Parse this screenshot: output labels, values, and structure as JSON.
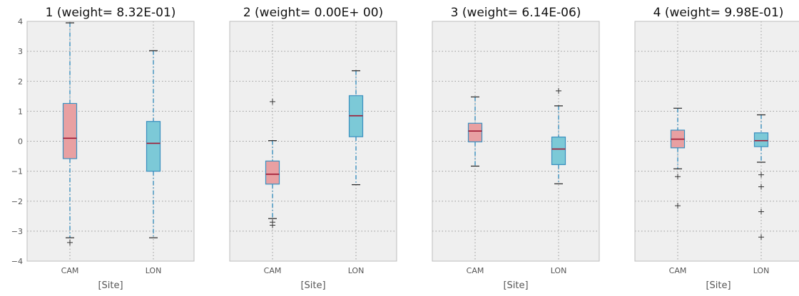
{
  "chart_data": {
    "type": "boxplot",
    "categories": [
      "CAM",
      "LON"
    ],
    "xlabel": "[Site]",
    "ylim": [
      -4,
      4
    ],
    "yticks": [
      "4",
      "3",
      "2",
      "1",
      "0",
      "−1",
      "−2",
      "−3",
      "−4"
    ],
    "yticks_values": [
      4,
      3,
      2,
      1,
      0,
      -1,
      -2,
      -3,
      -4
    ],
    "grid": true,
    "colors": {
      "CAM": "#e8a0a2",
      "LON": "#7cc9d7",
      "box_edge": "#3a8fbf",
      "median": "#a01832",
      "whisker": "#3a8fbf",
      "cap": "#222222",
      "panel_bg": "#efefef",
      "grid": "#999999",
      "frame": "#bdbdbd"
    },
    "panels": [
      {
        "title": "1 (weight= 8.32E-01)",
        "boxes": [
          {
            "category": "CAM",
            "q1": -0.58,
            "median": 0.1,
            "q3": 1.26,
            "whisker_low": -3.22,
            "whisker_high": 3.95,
            "outliers": [
              -3.38
            ]
          },
          {
            "category": "LON",
            "q1": -1.0,
            "median": -0.07,
            "q3": 0.66,
            "whisker_low": -3.22,
            "whisker_high": 3.02,
            "outliers": []
          }
        ]
      },
      {
        "title": "2 (weight= 0.00E+ 00)",
        "boxes": [
          {
            "category": "CAM",
            "q1": -1.43,
            "median": -1.1,
            "q3": -0.66,
            "whisker_low": -2.58,
            "whisker_high": 0.02,
            "outliers": [
              1.32,
              -2.7,
              -2.8
            ]
          },
          {
            "category": "LON",
            "q1": 0.15,
            "median": 0.85,
            "q3": 1.52,
            "whisker_low": -1.45,
            "whisker_high": 2.35,
            "outliers": []
          }
        ]
      },
      {
        "title": "3 (weight= 6.14E-06)",
        "boxes": [
          {
            "category": "CAM",
            "q1": -0.02,
            "median": 0.34,
            "q3": 0.6,
            "whisker_low": -0.83,
            "whisker_high": 1.48,
            "outliers": []
          },
          {
            "category": "LON",
            "q1": -0.78,
            "median": -0.26,
            "q3": 0.14,
            "whisker_low": -1.42,
            "whisker_high": 1.18,
            "outliers": [
              1.68
            ]
          }
        ]
      },
      {
        "title": "4 (weight= 9.98E-01)",
        "boxes": [
          {
            "category": "CAM",
            "q1": -0.22,
            "median": 0.07,
            "q3": 0.37,
            "whisker_low": -0.92,
            "whisker_high": 1.1,
            "outliers": [
              -1.18,
              -2.15
            ]
          },
          {
            "category": "LON",
            "q1": -0.18,
            "median": 0.02,
            "q3": 0.28,
            "whisker_low": -0.7,
            "whisker_high": 0.88,
            "outliers": [
              -1.12,
              -1.52,
              -2.35,
              -3.2
            ]
          }
        ]
      }
    ]
  }
}
